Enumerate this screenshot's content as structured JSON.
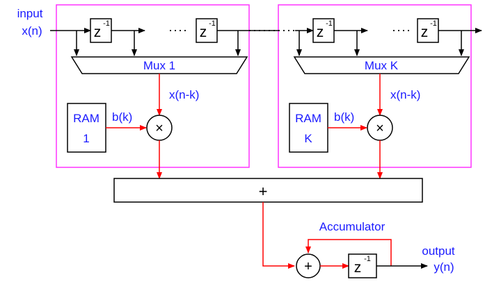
{
  "input": {
    "label": "input",
    "signal": "x(n)"
  },
  "output": {
    "label": "output",
    "signal": "y(n)"
  },
  "delay": {
    "base": "z",
    "exponent": "-1"
  },
  "stage1": {
    "mux": "Mux 1",
    "mux_out": "x(n-k)",
    "ram_line1": "RAM",
    "ram_line2": "1",
    "coef": "b(k)",
    "multiply": "×"
  },
  "stageK": {
    "mux": "Mux K",
    "mux_out": "x(n-k)",
    "ram_line1": "RAM",
    "ram_line2": "K",
    "coef": "b(k)",
    "multiply": "×"
  },
  "adder": {
    "symbol": "+"
  },
  "accumulator": {
    "label": "Accumulator",
    "symbol": "+"
  },
  "colors": {
    "label": "#1a1aff",
    "frame": "#ff33ff",
    "signal": "#ff0000",
    "line": "#000000"
  }
}
